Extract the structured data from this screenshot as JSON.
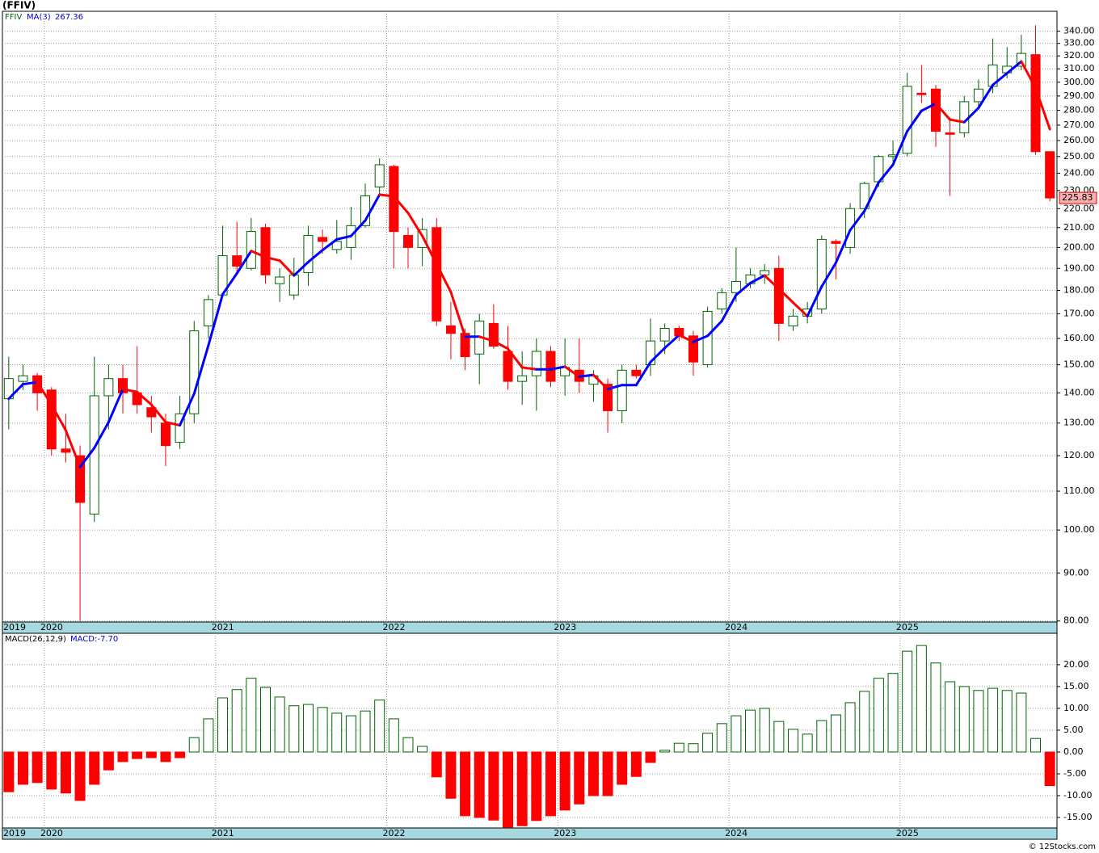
{
  "chart_data": [
    {
      "type": "candlestick",
      "title": "(FFIV)",
      "symbol": "FFIV",
      "log_scale": true,
      "grid": true,
      "up_color": "#006400",
      "down_color": "#ff0000",
      "categories": [
        "2019",
        null,
        null,
        "2020",
        null,
        null,
        null,
        null,
        null,
        null,
        null,
        null,
        null,
        null,
        null,
        "2021",
        null,
        null,
        null,
        null,
        null,
        null,
        null,
        null,
        null,
        null,
        null,
        "2022",
        null,
        null,
        null,
        null,
        null,
        null,
        null,
        null,
        null,
        null,
        null,
        "2023",
        null,
        null,
        null,
        null,
        null,
        null,
        null,
        null,
        null,
        null,
        null,
        "2024",
        null,
        null,
        null,
        null,
        null,
        null,
        null,
        null,
        null,
        null,
        null,
        "2025",
        null,
        null,
        null,
        null,
        null,
        null,
        null,
        null,
        null,
        null
      ],
      "open": [
        138,
        144,
        146,
        141,
        122,
        120,
        104,
        139,
        145,
        140,
        135,
        130,
        124,
        133,
        165,
        178,
        196,
        190,
        210,
        183,
        178,
        188,
        205,
        199,
        200,
        211,
        232,
        244,
        206,
        200,
        210,
        165,
        162,
        154,
        166,
        155,
        144,
        146,
        155,
        146,
        148,
        143,
        143,
        134,
        148,
        150,
        159,
        164,
        161,
        150,
        172,
        179,
        183,
        187,
        190,
        165,
        169,
        172,
        203,
        200,
        220,
        235,
        250,
        252,
        292,
        295,
        265,
        265,
        286,
        297,
        307,
        312,
        321,
        253
      ],
      "high": [
        153,
        150,
        147,
        142,
        133,
        123,
        153,
        150,
        150,
        157,
        139,
        133,
        139,
        167,
        178,
        211,
        213,
        215,
        212,
        190,
        195,
        211,
        209,
        214,
        221,
        234,
        249,
        245,
        210,
        215,
        215,
        175,
        164,
        170,
        174,
        165,
        155,
        160,
        157,
        160,
        160,
        148,
        145,
        150,
        150,
        168,
        166,
        165,
        163,
        173,
        181,
        200,
        190,
        192,
        196,
        172,
        175,
        206,
        204,
        223,
        235,
        251,
        260,
        307,
        313,
        298,
        275,
        290,
        302,
        334,
        327,
        337,
        345,
        253
      ],
      "low": [
        128,
        141,
        134,
        120,
        118,
        80,
        102,
        128,
        133,
        133,
        127,
        117,
        122,
        130,
        160,
        177,
        188,
        189,
        183,
        175,
        176,
        182,
        197,
        197,
        194,
        210,
        228,
        190,
        190,
        191,
        165,
        152,
        148,
        143,
        156,
        141,
        136,
        134,
        142,
        139,
        140,
        137,
        127,
        130,
        145,
        146,
        154,
        159,
        146,
        149,
        170,
        175,
        181,
        183,
        159,
        163,
        166,
        170,
        185,
        197,
        215,
        232,
        247,
        250,
        285,
        256,
        227,
        262,
        281,
        292,
        303,
        309,
        251,
        224
      ],
      "close": [
        145,
        146,
        140,
        122,
        121,
        107,
        139,
        145,
        140,
        136,
        132,
        123,
        133,
        163,
        176,
        196,
        191,
        208,
        187,
        186,
        187,
        206,
        203,
        203,
        211,
        227,
        245,
        208,
        200,
        209,
        167,
        162,
        153,
        167,
        157,
        144,
        146,
        155,
        144,
        149,
        144,
        146,
        134,
        148,
        146,
        159,
        164,
        161,
        151,
        171,
        179,
        184,
        187,
        189,
        166,
        169,
        172,
        204,
        202,
        220,
        234,
        250,
        251,
        297,
        291,
        266,
        264,
        286,
        295,
        313,
        312,
        322,
        253,
        225.83
      ],
      "ma": {
        "name": "MA(3)",
        "rising_color": "#0000ff",
        "falling_color": "#ff0000",
        "values": [
          138,
          143,
          143.7,
          136,
          127.7,
          116.7,
          122.3,
          130.3,
          141.3,
          140.3,
          136,
          130.3,
          129.3,
          139.7,
          157.3,
          178.3,
          187.7,
          198.3,
          195.3,
          193.7,
          186.7,
          193,
          198.7,
          204,
          205.7,
          213.7,
          227.7,
          226.7,
          217.7,
          205.7,
          192,
          179.3,
          160.7,
          160.7,
          159,
          156,
          149,
          148.3,
          148.3,
          149.3,
          145.7,
          146.3,
          141.3,
          142.7,
          142.7,
          151,
          156.3,
          161.3,
          158.7,
          161,
          167,
          178,
          183.3,
          186.7,
          180.7,
          174.7,
          169,
          181.7,
          192.7,
          208.7,
          218.7,
          234.7,
          245,
          266,
          279.7,
          284.7,
          273.7,
          272,
          281.7,
          298,
          306.7,
          315.7,
          295.7,
          267.36
        ]
      },
      "ylim": [
        79.8,
        357
      ],
      "yticks": [
        {
          "value": 80,
          "label": "80.00"
        },
        {
          "value": 90,
          "label": "90.00"
        },
        {
          "value": 100,
          "label": "100.00"
        },
        {
          "value": 110,
          "label": "110.00"
        },
        {
          "value": 120,
          "label": "120.00"
        },
        {
          "value": 130,
          "label": "130.00"
        },
        {
          "value": 140,
          "label": "140.00"
        },
        {
          "value": 150,
          "label": "150.00"
        },
        {
          "value": 160,
          "label": "160.00"
        },
        {
          "value": 170,
          "label": "170.00"
        },
        {
          "value": 180,
          "label": "180.00"
        },
        {
          "value": 190,
          "label": "190.00"
        },
        {
          "value": 200,
          "label": "200.00"
        },
        {
          "value": 210,
          "label": "210.00"
        },
        {
          "value": 220,
          "label": "220.00"
        },
        {
          "value": 230,
          "label": "230.00"
        },
        {
          "value": 240,
          "label": "240.00"
        },
        {
          "value": 250,
          "label": "250.00"
        },
        {
          "value": 260,
          "label": "260.00"
        },
        {
          "value": 270,
          "label": "270.00"
        },
        {
          "value": 280,
          "label": "280.00"
        },
        {
          "value": 290,
          "label": "290.00"
        },
        {
          "value": 300,
          "label": "300.00"
        },
        {
          "value": 310,
          "label": "310.00"
        },
        {
          "value": 320,
          "label": "320.00"
        },
        {
          "value": 330,
          "label": "330.00"
        },
        {
          "value": 340,
          "label": "340.00"
        }
      ]
    },
    {
      "type": "bar",
      "title": "MACD(26,12,9)",
      "value_text": "MACD:-7.70",
      "grid": true,
      "up_color": "#006400",
      "down_color": "#ff0000",
      "categories": [
        "2019",
        null,
        null,
        "2020",
        null,
        null,
        null,
        null,
        null,
        null,
        null,
        null,
        null,
        null,
        null,
        "2021",
        null,
        null,
        null,
        null,
        null,
        null,
        null,
        null,
        null,
        null,
        null,
        "2022",
        null,
        null,
        null,
        null,
        null,
        null,
        null,
        null,
        null,
        null,
        null,
        "2023",
        null,
        null,
        null,
        null,
        null,
        null,
        null,
        null,
        null,
        null,
        null,
        "2024",
        null,
        null,
        null,
        null,
        null,
        null,
        null,
        null,
        null,
        null,
        null,
        "2025",
        null,
        null,
        null,
        null,
        null,
        null,
        null,
        null,
        null,
        null
      ],
      "values": [
        -9.1,
        -7.4,
        -7.0,
        -8.5,
        -9.4,
        -11.1,
        -7.4,
        -4.1,
        -2.2,
        -1.5,
        -1.3,
        -2.2,
        -1.3,
        3.3,
        7.6,
        12.4,
        14.3,
        16.9,
        14.8,
        12.6,
        10.6,
        10.9,
        10.2,
        8.9,
        8.3,
        9.4,
        11.9,
        7.6,
        3.3,
        1.3,
        -5.7,
        -10.6,
        -14.6,
        -15.0,
        -15.6,
        -17.2,
        -16.9,
        -15.7,
        -14.6,
        -13.3,
        -11.9,
        -10.0,
        -10.0,
        -7.4,
        -5.6,
        -2.4,
        0.4,
        2.0,
        1.9,
        4.3,
        6.5,
        8.3,
        9.6,
        10.0,
        7.0,
        5.2,
        4.1,
        7.2,
        8.5,
        11.3,
        13.9,
        16.9,
        18.0,
        23.1,
        24.4,
        20.4,
        16.1,
        15.0,
        14.1,
        14.6,
        14.1,
        13.5,
        3.1,
        -7.7
      ],
      "ylim": [
        -17.4,
        27.2
      ],
      "yticks": [
        {
          "value": -15,
          "label": "-15.00"
        },
        {
          "value": -10,
          "label": "-10.00"
        },
        {
          "value": -5,
          "label": "-5.00"
        },
        {
          "value": 0,
          "label": "0.00"
        },
        {
          "value": 5,
          "label": "5.00"
        },
        {
          "value": 10,
          "label": "10.00"
        },
        {
          "value": 15,
          "label": "15.00"
        },
        {
          "value": 20,
          "label": "20.00"
        }
      ]
    }
  ],
  "watermark": "© 12Stocks.com"
}
